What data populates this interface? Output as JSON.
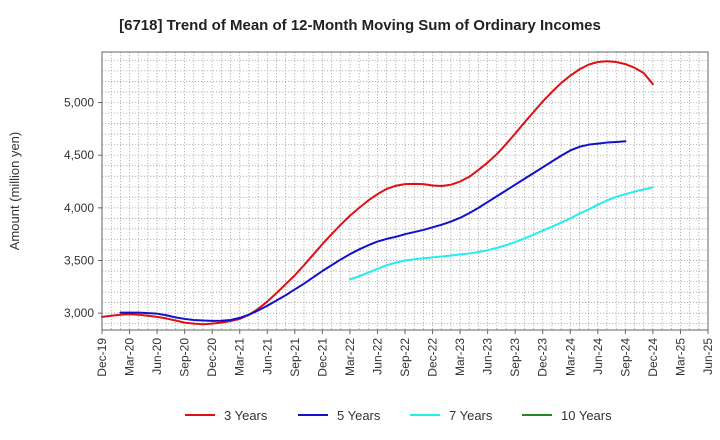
{
  "chart_data": {
    "type": "line",
    "title": "[6718]  Trend of Mean of 12-Month Moving Sum of Ordinary Incomes",
    "xlabel": "",
    "ylabel": "Amount (million yen)",
    "ylim": [
      2840,
      5480
    ],
    "yticks": [
      3000,
      3500,
      4000,
      4500,
      5000
    ],
    "ytick_labels": [
      "3,000",
      "3,500",
      "4,000",
      "4,500",
      "5,000"
    ],
    "x_start": "2019-12",
    "x_range_months": [
      0,
      66
    ],
    "x_ticks": [
      {
        "label": "Dec-19",
        "m": 0
      },
      {
        "label": "Mar-20",
        "m": 3
      },
      {
        "label": "Jun-20",
        "m": 6
      },
      {
        "label": "Sep-20",
        "m": 9
      },
      {
        "label": "Dec-20",
        "m": 12
      },
      {
        "label": "Mar-21",
        "m": 15
      },
      {
        "label": "Jun-21",
        "m": 18
      },
      {
        "label": "Sep-21",
        "m": 21
      },
      {
        "label": "Dec-21",
        "m": 24
      },
      {
        "label": "Mar-22",
        "m": 27
      },
      {
        "label": "Jun-22",
        "m": 30
      },
      {
        "label": "Sep-22",
        "m": 33
      },
      {
        "label": "Dec-22",
        "m": 36
      },
      {
        "label": "Mar-23",
        "m": 39
      },
      {
        "label": "Jun-23",
        "m": 42
      },
      {
        "label": "Sep-23",
        "m": 45
      },
      {
        "label": "Dec-23",
        "m": 48
      },
      {
        "label": "Mar-24",
        "m": 51
      },
      {
        "label": "Jun-24",
        "m": 54
      },
      {
        "label": "Sep-24",
        "m": 57
      },
      {
        "label": "Dec-24",
        "m": 60
      },
      {
        "label": "Mar-25",
        "m": 63
      },
      {
        "label": "Jun-25",
        "m": 66
      }
    ],
    "grid": true,
    "legend_position": "bottom",
    "series": [
      {
        "name": "3 Years",
        "color": "#dd1111",
        "start_month": 0,
        "values": [
          2965,
          2975,
          2985,
          2990,
          2985,
          2975,
          2965,
          2950,
          2930,
          2910,
          2900,
          2895,
          2900,
          2910,
          2925,
          2945,
          2985,
          3040,
          3110,
          3190,
          3275,
          3360,
          3455,
          3555,
          3655,
          3750,
          3840,
          3925,
          4000,
          4070,
          4130,
          4180,
          4210,
          4225,
          4228,
          4225,
          4212,
          4208,
          4220,
          4250,
          4295,
          4360,
          4430,
          4510,
          4605,
          4705,
          4810,
          4910,
          5010,
          5100,
          5185,
          5255,
          5315,
          5360,
          5385,
          5392,
          5385,
          5365,
          5330,
          5280,
          5175
        ]
      },
      {
        "name": "5 Years",
        "color": "#1111cc",
        "start_month": 2,
        "values": [
          3005,
          3005,
          3005,
          3000,
          2995,
          2980,
          2960,
          2945,
          2935,
          2930,
          2927,
          2928,
          2935,
          2955,
          2985,
          3025,
          3070,
          3120,
          3170,
          3225,
          3280,
          3340,
          3400,
          3455,
          3510,
          3560,
          3605,
          3645,
          3680,
          3705,
          3725,
          3750,
          3770,
          3790,
          3815,
          3840,
          3870,
          3905,
          3950,
          4000,
          4055,
          4110,
          4165,
          4220,
          4275,
          4330,
          4385,
          4440,
          4495,
          4545,
          4580,
          4600,
          4610,
          4620,
          4625,
          4632
        ]
      },
      {
        "name": "7 Years",
        "color": "#22eeee",
        "start_month": 27,
        "values": [
          3320,
          3350,
          3385,
          3420,
          3455,
          3480,
          3500,
          3512,
          3520,
          3530,
          3538,
          3547,
          3557,
          3567,
          3580,
          3598,
          3620,
          3645,
          3675,
          3710,
          3745,
          3785,
          3820,
          3860,
          3900,
          3945,
          3985,
          4030,
          4070,
          4105,
          4130,
          4155,
          4175,
          4195
        ]
      },
      {
        "name": "10 Years",
        "color": "#228822",
        "start_month": 0,
        "values": []
      }
    ]
  }
}
